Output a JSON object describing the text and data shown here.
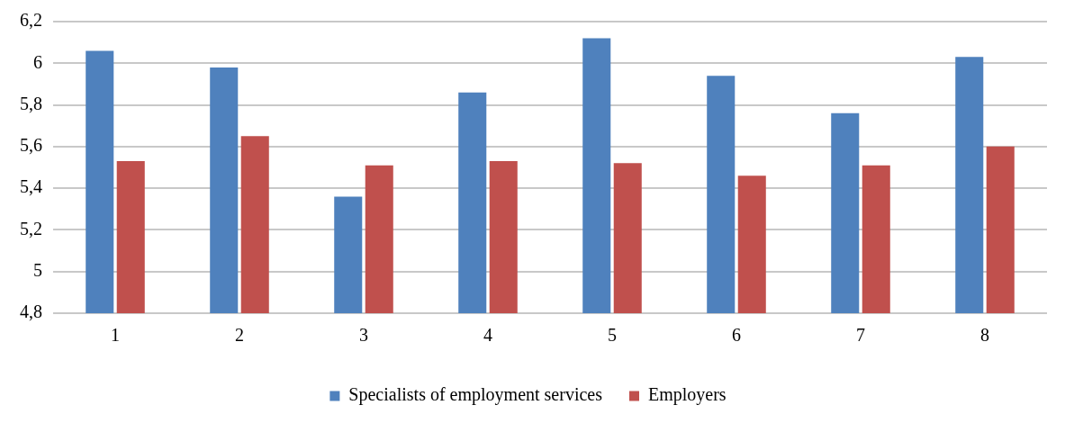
{
  "chart_data": {
    "type": "bar",
    "categories": [
      "1",
      "2",
      "3",
      "4",
      "5",
      "6",
      "7",
      "8"
    ],
    "series": [
      {
        "name": "Specialists of employment services",
        "color": "#4f81bd",
        "values": [
          6.06,
          5.98,
          5.36,
          5.86,
          6.12,
          5.94,
          5.76,
          6.03
        ]
      },
      {
        "name": "Employers",
        "color": "#c0504d",
        "values": [
          5.53,
          5.65,
          5.51,
          5.53,
          5.52,
          5.46,
          5.51,
          5.6
        ]
      }
    ],
    "ylim": [
      4.8,
      6.2
    ],
    "yticks": [
      {
        "value": 4.8,
        "label": "4,8"
      },
      {
        "value": 5,
        "label": "5"
      },
      {
        "value": 5.2,
        "label": "5,2"
      },
      {
        "value": 5.4,
        "label": "5,4"
      },
      {
        "value": 5.6,
        "label": "5,6"
      },
      {
        "value": 5.8,
        "label": "5,8"
      },
      {
        "value": 6,
        "label": "6"
      },
      {
        "value": 6.2,
        "label": "6,2"
      }
    ],
    "grid": "y",
    "legend": "bottom"
  }
}
